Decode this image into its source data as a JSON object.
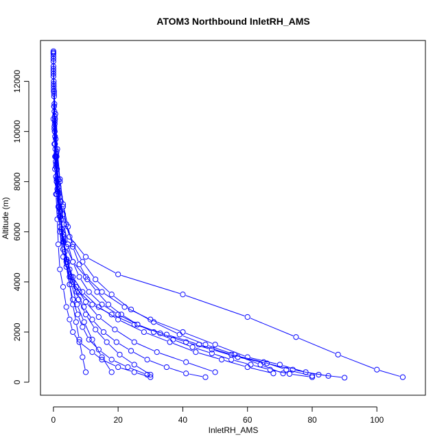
{
  "chart_data": {
    "type": "scatter",
    "title": "ATOM3 Northbound InletRH_AMS",
    "xlabel": "InletRH_AMS",
    "ylabel": "Altitude (m)",
    "xlim": [
      -4,
      115
    ],
    "ylim": [
      -520,
      13630
    ],
    "x_ticks": [
      0,
      20,
      40,
      60,
      80,
      100
    ],
    "y_ticks": [
      0,
      2000,
      4000,
      6000,
      8000,
      10000,
      12000
    ],
    "x_tick_labels": [
      "0",
      "20",
      "40",
      "60",
      "80",
      "100"
    ],
    "y_tick_labels": [
      "0",
      "2000",
      "4000",
      "6000",
      "8000",
      "10000",
      "12000"
    ],
    "marker": "open-circle",
    "connect_points": true,
    "grid": false,
    "legend": "none",
    "color": "#0000ff",
    "series": [
      {
        "x": [
          0,
          0,
          0.2,
          0,
          0.3,
          0.5,
          0.8,
          1.2,
          1.5,
          2,
          3,
          4,
          5,
          6,
          8,
          12,
          15,
          20,
          25,
          30
        ],
        "y": [
          13200,
          12500,
          11500,
          10500,
          9500,
          8500,
          7500,
          6500,
          5500,
          4500,
          3800,
          3000,
          2500,
          2000,
          1600,
          1200,
          900,
          600,
          400,
          200
        ]
      },
      {
        "x": [
          0,
          0.1,
          0.2,
          0.4,
          0.7,
          1,
          1.5,
          2,
          3,
          5,
          8,
          12,
          18,
          25,
          35,
          45,
          55,
          65,
          72,
          80
        ],
        "y": [
          13100,
          12000,
          11000,
          10000,
          9000,
          8000,
          7000,
          6000,
          5000,
          4200,
          3600,
          3100,
          2700,
          2300,
          1900,
          1500,
          1100,
          800,
          500,
          250
        ]
      },
      {
        "x": [
          0,
          0.1,
          0.3,
          0.5,
          1,
          2,
          3,
          5,
          10,
          20,
          40,
          60,
          75,
          88,
          100,
          108
        ],
        "y": [
          13150,
          11800,
          10200,
          9000,
          8000,
          7400,
          6700,
          5800,
          5000,
          4300,
          3500,
          2600,
          1800,
          1100,
          500,
          200
        ]
      },
      {
        "x": [
          0,
          0.2,
          0.5,
          0.8,
          1,
          2,
          4,
          6,
          10,
          15,
          22,
          30,
          40,
          50,
          60,
          70,
          78,
          85
        ],
        "y": [
          12800,
          11000,
          9500,
          8200,
          7500,
          6200,
          5400,
          4800,
          4200,
          3600,
          3000,
          2500,
          2000,
          1500,
          1000,
          700,
          400,
          250
        ]
      },
      {
        "x": [
          0,
          0.3,
          0.6,
          1,
          2,
          3,
          4,
          6,
          9,
          14,
          20,
          28,
          36,
          44,
          52,
          60,
          68
        ],
        "y": [
          12400,
          10800,
          9300,
          8100,
          6900,
          5900,
          4900,
          4200,
          3600,
          3000,
          2500,
          2000,
          1600,
          1200,
          900,
          600,
          350
        ]
      },
      {
        "x": [
          0.1,
          0.4,
          0.9,
          1.3,
          1.8,
          2.5,
          3,
          4,
          5,
          6,
          7.5,
          9,
          11,
          14,
          18,
          23,
          29
        ],
        "y": [
          11900,
          10300,
          9000,
          7900,
          7000,
          6100,
          5300,
          4600,
          3900,
          3300,
          2700,
          2200,
          1700,
          1300,
          900,
          600,
          300
        ]
      },
      {
        "x": [
          0,
          0.5,
          1,
          1.6,
          2.2,
          3,
          4,
          5,
          6,
          7,
          8,
          9,
          10
        ],
        "y": [
          12600,
          10500,
          9000,
          7800,
          6800,
          5800,
          4800,
          3900,
          3100,
          2400,
          1700,
          1000,
          400
        ]
      },
      {
        "x": [
          0,
          0.4,
          1,
          2,
          3,
          4,
          6,
          9,
          13,
          18,
          24,
          31,
          39,
          47,
          56,
          64,
          71
        ],
        "y": [
          12200,
          10600,
          9200,
          8000,
          7000,
          6300,
          5500,
          4800,
          4100,
          3500,
          2900,
          2400,
          1900,
          1500,
          1100,
          700,
          350
        ]
      },
      {
        "x": [
          0.1,
          0.3,
          0.7,
          1.2,
          1.8,
          2.6,
          3.5,
          5,
          7,
          10,
          14,
          19,
          25,
          32,
          41,
          50
        ],
        "y": [
          11700,
          10100,
          8800,
          7700,
          6800,
          6000,
          5200,
          4500,
          3800,
          3200,
          2600,
          2100,
          1600,
          1200,
          800,
          400
        ]
      },
      {
        "x": [
          0,
          0.2,
          0.4,
          0.9,
          1.5,
          2.3,
          3.2,
          4.5,
          6,
          8,
          11,
          15,
          20,
          26,
          33,
          41,
          49,
          57,
          66,
          74,
          82,
          90
        ],
        "y": [
          13000,
          11600,
          10400,
          9100,
          8100,
          7200,
          6300,
          5500,
          4800,
          4200,
          3600,
          3100,
          2700,
          2300,
          1950,
          1600,
          1300,
          1000,
          750,
          500,
          300,
          180
        ]
      },
      {
        "x": [
          0.2,
          0.5,
          0.8,
          1.3,
          2,
          3,
          4.2,
          5.6,
          7.3,
          9.5,
          12,
          15,
          18
        ],
        "y": [
          11400,
          9800,
          8600,
          7600,
          6600,
          5600,
          4700,
          3900,
          3100,
          2400,
          1700,
          1000,
          400
        ]
      },
      {
        "x": [
          0,
          0.6,
          1.2,
          2,
          3,
          4.5,
          6,
          8,
          10.5,
          13.5,
          17,
          21,
          26,
          31,
          37,
          43,
          49,
          55,
          61,
          67,
          73,
          80
        ],
        "y": [
          12300,
          10700,
          9300,
          8100,
          7100,
          6200,
          5400,
          4700,
          4100,
          3600,
          3100,
          2700,
          2300,
          2000,
          1700,
          1400,
          1150,
          900,
          700,
          500,
          330,
          200
        ]
      },
      {
        "x": [
          0,
          0.3,
          0.7,
          1.1,
          1.6,
          2.3,
          3.2,
          4.4,
          5.9,
          7.8,
          10,
          13,
          16.5,
          20.5,
          25,
          30
        ],
        "y": [
          12900,
          11100,
          9700,
          8500,
          7500,
          6500,
          5600,
          4800,
          4000,
          3300,
          2700,
          2100,
          1600,
          1100,
          700,
          300
        ]
      },
      {
        "x": [
          0.1,
          0.4,
          0.8,
          1.4,
          2.1,
          3,
          4.1,
          5.5,
          7.2,
          9.4,
          12,
          15.5,
          19.5,
          24,
          29,
          35,
          41,
          47
        ],
        "y": [
          11600,
          10000,
          8700,
          7600,
          6600,
          5700,
          4900,
          4200,
          3600,
          3000,
          2500,
          2000,
          1600,
          1250,
          900,
          600,
          350,
          200
        ]
      }
    ]
  }
}
